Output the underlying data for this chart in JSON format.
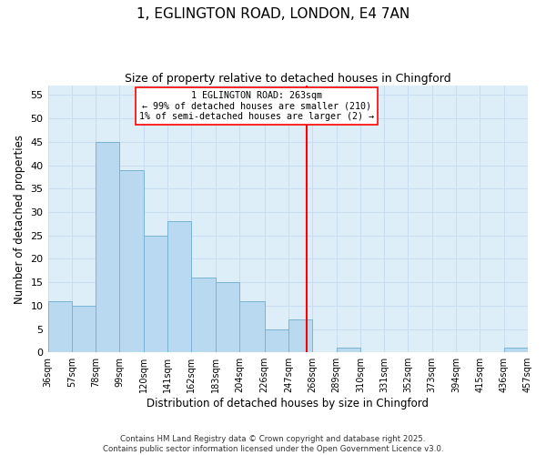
{
  "title_line1": "1, EGLINGTON ROAD, LONDON, E4 7AN",
  "title_line2": "Size of property relative to detached houses in Chingford",
  "xlabel": "Distribution of detached houses by size in Chingford",
  "ylabel": "Number of detached properties",
  "bar_edges": [
    36,
    57,
    78,
    99,
    120,
    141,
    162,
    183,
    204,
    226,
    247,
    268,
    289,
    310,
    331,
    352,
    373,
    394,
    415,
    436,
    457
  ],
  "bar_heights": [
    11,
    10,
    45,
    39,
    25,
    28,
    16,
    15,
    11,
    5,
    7,
    0,
    1,
    0,
    0,
    0,
    0,
    0,
    0,
    1
  ],
  "bar_color": "#b8d9f0",
  "bar_edgecolor": "#7ab3d4",
  "vline_x": 263,
  "vline_color": "red",
  "ylim": [
    0,
    57
  ],
  "yticks": [
    0,
    5,
    10,
    15,
    20,
    25,
    30,
    35,
    40,
    45,
    50,
    55
  ],
  "xtick_labels": [
    "36sqm",
    "57sqm",
    "78sqm",
    "99sqm",
    "120sqm",
    "141sqm",
    "162sqm",
    "183sqm",
    "204sqm",
    "226sqm",
    "247sqm",
    "268sqm",
    "289sqm",
    "310sqm",
    "331sqm",
    "352sqm",
    "373sqm",
    "394sqm",
    "415sqm",
    "436sqm",
    "457sqm"
  ],
  "annotation_title": "1 EGLINGTON ROAD: 263sqm",
  "annotation_line2": "← 99% of detached houses are smaller (210)",
  "annotation_line3": "1% of semi-detached houses are larger (2) →",
  "grid_color": "#c8ddf0",
  "background_color": "#deeef8",
  "footer1": "Contains HM Land Registry data © Crown copyright and database right 2025.",
  "footer2": "Contains public sector information licensed under the Open Government Licence v3.0."
}
